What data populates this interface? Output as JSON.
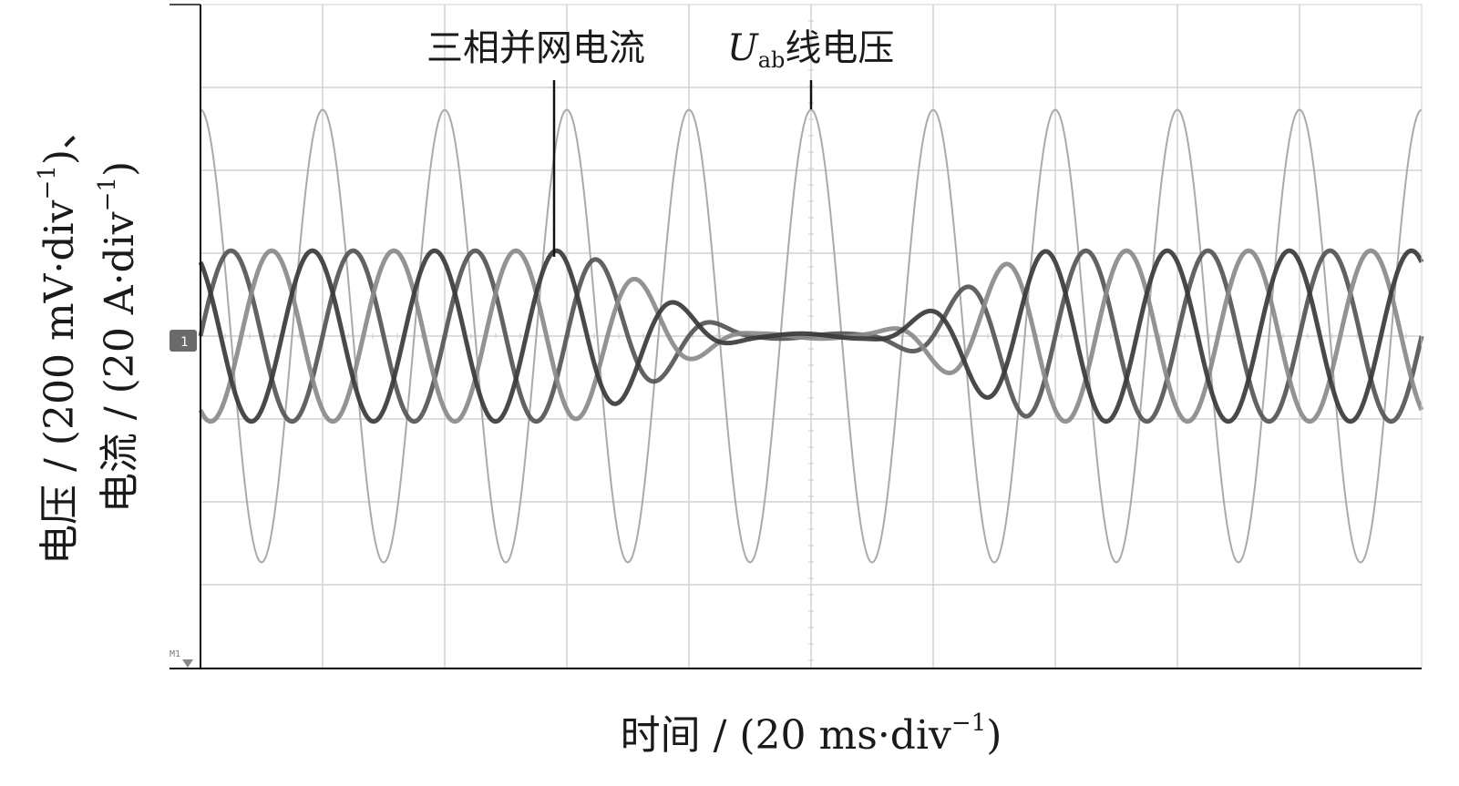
{
  "chart_data": {
    "type": "line",
    "xlabel": "时间 / (20 ms·div",
    "xlabel_exp": "−1",
    "xlabel_close": ")",
    "ylabel_line1": "电压 / (200 mV·div",
    "ylabel_line1_exp": "−1",
    "ylabel_line1_close": ")、",
    "ylabel_line2": "电流 / (20 A·div",
    "ylabel_line2_exp": "−1",
    "ylabel_line2_close": ")",
    "x_divisions": 10,
    "y_divisions": 8,
    "grid": true,
    "x_unit": "div",
    "y_unit": "div",
    "xlim": [
      0,
      10
    ],
    "ylim": [
      -4,
      4
    ],
    "markers": {
      "channel_1": "1",
      "math_1": "M1"
    },
    "annotations": [
      {
        "text": "三相并网电流",
        "points_at": "三相并网电流"
      },
      {
        "text_main": "U",
        "text_sub": "ab",
        "text_tail": "线电压",
        "points_at": "Uab 线电压"
      }
    ],
    "series": [
      {
        "name": "Uab 线电压",
        "color": "#aaaaaa",
        "period_div": 1.0,
        "peak_time_div": 5.0,
        "envelope": [
          [
            0,
            2.73
          ],
          [
            10,
            2.73
          ]
        ]
      },
      {
        "name": "三相并网电流",
        "phase": "a",
        "color": "#555555",
        "period_div": 1.0,
        "phase_deg": 0,
        "envelope": [
          [
            0,
            1.03
          ],
          [
            2.9,
            1.03
          ],
          [
            4.6,
            0.03
          ],
          [
            5.4,
            0.03
          ],
          [
            7.0,
            1.03
          ],
          [
            10,
            1.03
          ]
        ]
      },
      {
        "name": "三相并网电流",
        "phase": "b",
        "color": "#8a8a8a",
        "phase_deg": -120,
        "period_div": 1.0,
        "envelope": [
          [
            0,
            1.03
          ],
          [
            2.9,
            1.03
          ],
          [
            4.6,
            0.03
          ],
          [
            5.4,
            0.03
          ],
          [
            7.0,
            1.03
          ],
          [
            10,
            1.03
          ]
        ]
      },
      {
        "name": "三相并网电流",
        "phase": "c",
        "color": "#3a3a3a",
        "phase_deg": 120,
        "period_div": 1.0,
        "envelope": [
          [
            0,
            1.03
          ],
          [
            2.9,
            1.03
          ],
          [
            4.6,
            0.03
          ],
          [
            5.4,
            0.03
          ],
          [
            7.0,
            1.03
          ],
          [
            10,
            1.03
          ]
        ]
      }
    ]
  }
}
